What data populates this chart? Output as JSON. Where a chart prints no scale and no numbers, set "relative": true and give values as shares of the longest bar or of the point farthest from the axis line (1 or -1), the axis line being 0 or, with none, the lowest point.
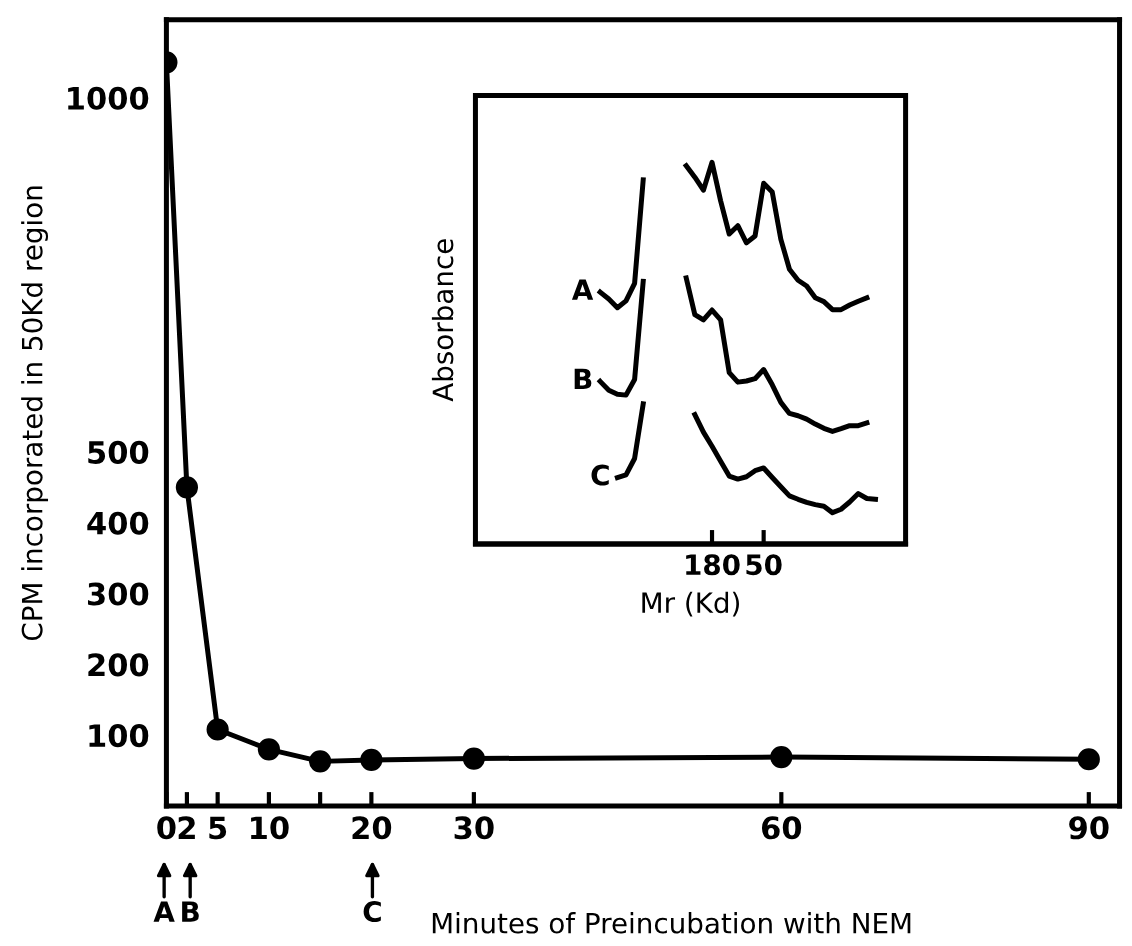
{
  "chart_data": [
    {
      "type": "line",
      "xlabel": "Minutes of Preincubation with NEM",
      "ylabel": "CPM incorporated in 50Kd region",
      "x": [
        0,
        2,
        5,
        10,
        15,
        20,
        30,
        60,
        90
      ],
      "series": [
        {
          "color": "#000000",
          "values": [
            1050,
            450,
            108,
            80,
            63,
            65,
            67,
            69,
            66
          ]
        }
      ],
      "xlim": [
        0,
        93
      ],
      "xticks": [
        0,
        2,
        5,
        10,
        {
          "value": 15,
          "label": null
        },
        20,
        30,
        60,
        90
      ],
      "ylim": [
        0,
        1110
      ],
      "yticks": [
        100,
        200,
        300,
        400,
        500,
        1000
      ],
      "marker": "circle",
      "line_style": "solid",
      "grid": false,
      "legend": false,
      "annotations": [
        "A",
        "B",
        "C"
      ]
    },
    {
      "type": "line",
      "relative": true,
      "ylabel": "Absorbance",
      "xlabel": "Mr (Kd)",
      "grid": false,
      "legend": false,
      "marker": "none",
      "line_style": "solid",
      "categories": [
        null,
        null,
        null,
        null,
        null,
        null,
        null,
        null,
        null,
        null,
        null,
        null,
        null,
        "180",
        null,
        null,
        null,
        null,
        null,
        "50",
        null,
        null,
        null,
        null,
        null,
        null,
        null,
        null,
        null,
        null,
        null,
        null,
        null
      ],
      "series": [
        {
          "name": "A",
          "color": "#000000",
          "values": [
            0.66,
            0.642,
            0.619,
            0.637,
            0.683,
            0.954,
            null,
            null,
            null,
            null,
            0.991,
            0.961,
            0.927,
            1.0,
            0.899,
            0.812,
            0.834,
            0.789,
            0.807,
            0.945,
            0.922,
            0.798,
            0.72,
            0.691,
            0.676,
            0.645,
            0.635,
            0.614,
            0.614,
            0.626,
            0.636,
            0.645,
            null
          ]
        },
        {
          "name": "B",
          "color": "#000000",
          "values": [
            0.426,
            0.403,
            0.392,
            0.39,
            0.431,
            0.688,
            null,
            null,
            null,
            null,
            0.697,
            0.601,
            0.587,
            0.613,
            0.587,
            0.449,
            0.424,
            0.427,
            0.433,
            0.457,
            0.417,
            0.371,
            0.342,
            0.336,
            0.327,
            0.314,
            0.303,
            0.295,
            0.302,
            0.31,
            0.31,
            0.317,
            null
          ]
        },
        {
          "name": "C",
          "color": "#000000",
          "values": [
            null,
            null,
            0.174,
            0.181,
            0.224,
            0.367,
            null,
            null,
            null,
            null,
            null,
            0.339,
            0.293,
            0.256,
            0.217,
            0.178,
            0.17,
            0.176,
            0.192,
            0.199,
            0.174,
            0.15,
            0.126,
            0.117,
            0.109,
            0.103,
            0.099,
            0.082,
            0.091,
            0.11,
            0.132,
            0.119,
            0.117
          ]
        }
      ]
    }
  ]
}
